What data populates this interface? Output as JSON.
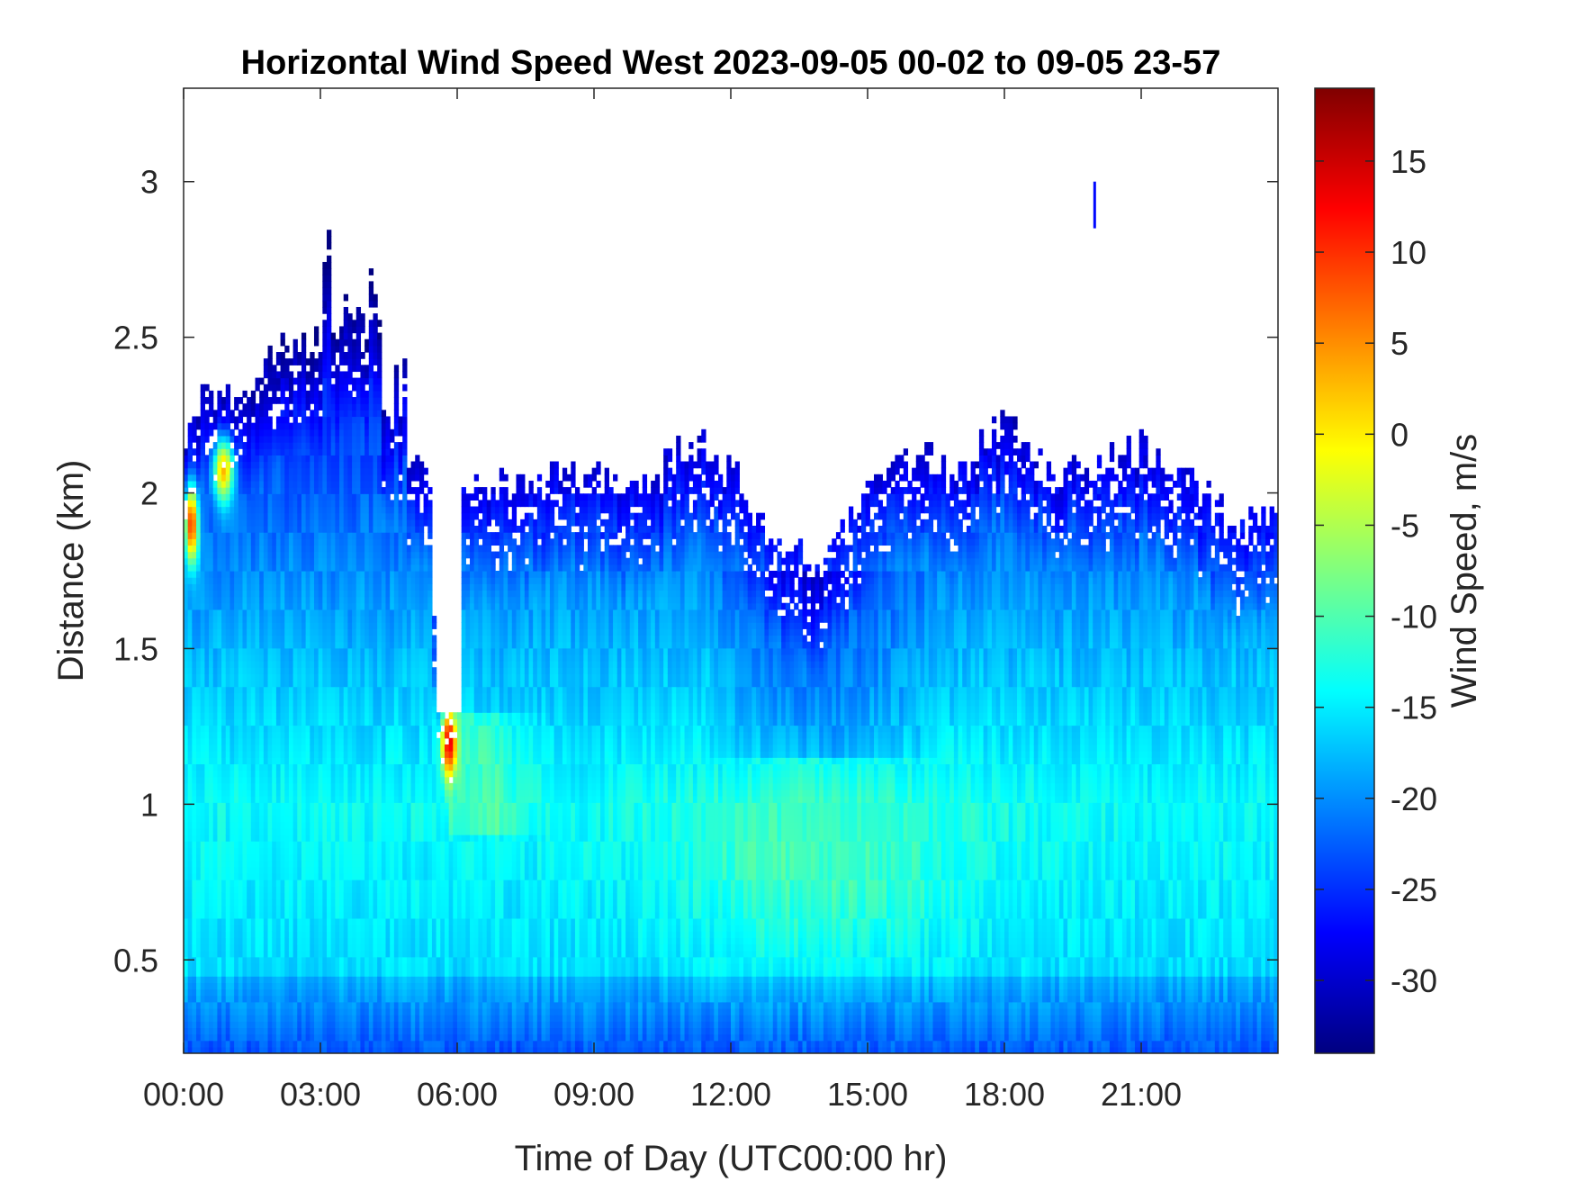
{
  "chart_data": {
    "type": "heatmap",
    "title": "Horizontal Wind Speed West 2023-09-05 00-02 to 09-05 23-57",
    "xlabel": "Time of Day (UTC00:00 hr)",
    "ylabel": "Distance (km)",
    "xlim_hours": [
      0,
      24
    ],
    "ylim_km": [
      0.2,
      3.3
    ],
    "x_ticks": [
      {
        "hour": 0,
        "label": "00:00"
      },
      {
        "hour": 3,
        "label": "03:00"
      },
      {
        "hour": 6,
        "label": "06:00"
      },
      {
        "hour": 9,
        "label": "09:00"
      },
      {
        "hour": 12,
        "label": "12:00"
      },
      {
        "hour": 15,
        "label": "15:00"
      },
      {
        "hour": 18,
        "label": "18:00"
      },
      {
        "hour": 21,
        "label": "21:00"
      }
    ],
    "y_ticks": [
      {
        "value": 0.5,
        "label": "0.5"
      },
      {
        "value": 1,
        "label": "1"
      },
      {
        "value": 1.5,
        "label": "1.5"
      },
      {
        "value": 2,
        "label": "2"
      },
      {
        "value": 2.5,
        "label": "2.5"
      },
      {
        "value": 3,
        "label": "3"
      }
    ],
    "colorbar": {
      "label": "Wind Speed, m/s",
      "colormap": "jet",
      "range": [
        -34,
        19
      ],
      "ticks": [
        {
          "value": 15,
          "label": "15"
        },
        {
          "value": 10,
          "label": "10"
        },
        {
          "value": 5,
          "label": "5"
        },
        {
          "value": 0,
          "label": "0"
        },
        {
          "value": -5,
          "label": "-5"
        },
        {
          "value": -10,
          "label": "-10"
        },
        {
          "value": -15,
          "label": "-15"
        },
        {
          "value": -20,
          "label": "-20"
        },
        {
          "value": -25,
          "label": "-25"
        },
        {
          "value": -30,
          "label": "-30"
        }
      ]
    },
    "data_top_km": [
      [
        0.0,
        2.18
      ],
      [
        0.5,
        2.3
      ],
      [
        1.0,
        2.3
      ],
      [
        1.5,
        2.35
      ],
      [
        2.0,
        2.45
      ],
      [
        3.0,
        2.5
      ],
      [
        3.8,
        2.6
      ],
      [
        4.3,
        2.3
      ],
      [
        4.8,
        2.1
      ],
      [
        5.4,
        2.05
      ],
      [
        5.55,
        1.35
      ],
      [
        6.0,
        1.3
      ],
      [
        6.1,
        2.03
      ],
      [
        7.0,
        2.03
      ],
      [
        8.0,
        2.05
      ],
      [
        9.0,
        2.05
      ],
      [
        10.0,
        2.02
      ],
      [
        11.0,
        2.12
      ],
      [
        12.0,
        2.08
      ],
      [
        13.0,
        1.82
      ],
      [
        14.0,
        1.77
      ],
      [
        15.0,
        2.02
      ],
      [
        16.0,
        2.12
      ],
      [
        17.0,
        2.08
      ],
      [
        18.0,
        2.22
      ],
      [
        19.0,
        2.08
      ],
      [
        20.0,
        2.1
      ],
      [
        21.0,
        2.15
      ],
      [
        22.0,
        2.05
      ],
      [
        23.0,
        1.9
      ],
      [
        24.0,
        1.92
      ]
    ],
    "features": [
      {
        "name": "gap",
        "x_hours": [
          5.55,
          6.05
        ],
        "distance_km": [
          1.3,
          2.1
        ],
        "speed": null
      },
      {
        "name": "strong-positive-core",
        "x_hours": [
          5.7,
          5.95
        ],
        "distance_km": [
          1.1,
          1.3
        ],
        "speed": 14
      },
      {
        "name": "positive-near-start",
        "x_hours": [
          0.1,
          0.25
        ],
        "distance_km": [
          1.8,
          2.0
        ],
        "speed": 10
      },
      {
        "name": "positive-early",
        "x_hours": [
          0.7,
          1.05
        ],
        "distance_km": [
          2.0,
          2.15
        ],
        "speed": 3
      },
      {
        "name": "weak-zone",
        "x_hours": [
          12.5,
          15.5
        ],
        "distance_km": [
          0.6,
          1.0
        ],
        "speed": -12
      },
      {
        "name": "isolated-return",
        "x_hours": [
          19.95,
          20.05
        ],
        "distance_km": [
          2.85,
          3.0
        ],
        "speed": -27
      }
    ]
  }
}
